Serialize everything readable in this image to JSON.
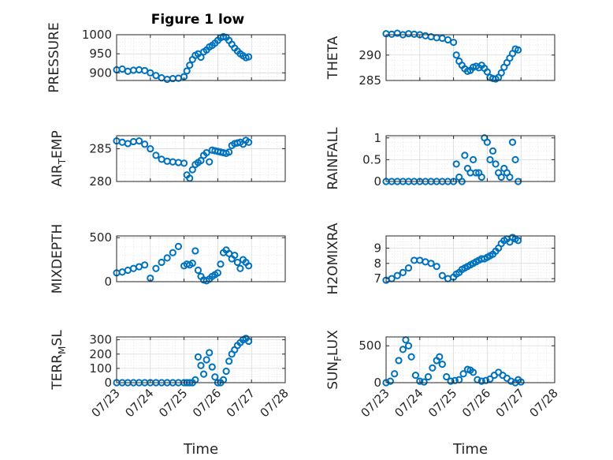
{
  "figure_title": "Figure 1 low",
  "chart_data": [
    {
      "type": "scatter",
      "title": "Figure 1 low",
      "ylabel": "PRESSURE",
      "ylabel_sub": "",
      "xlabel": "",
      "xlim": [
        "07/23",
        "07/28"
      ],
      "ylim": [
        880,
        1000
      ],
      "yticks": [
        900,
        950,
        1000
      ],
      "xticks": [],
      "grid": true,
      "marker": "circle",
      "color": "#0072BD",
      "x": [
        "07/23 00:00",
        "07/23 04:00",
        "07/23 08:00",
        "07/23 12:00",
        "07/23 16:00",
        "07/23 20:00",
        "07/24 00:00",
        "07/24 04:00",
        "07/24 08:00",
        "07/24 12:00",
        "07/24 16:00",
        "07/24 20:00",
        "07/25 00:00",
        "07/25 02:00",
        "07/25 04:00",
        "07/25 06:00",
        "07/25 08:00",
        "07/25 10:00",
        "07/25 12:00",
        "07/25 14:00",
        "07/25 16:00",
        "07/25 18:00",
        "07/25 20:00",
        "07/25 22:00",
        "07/26 00:00",
        "07/26 02:00",
        "07/26 04:00",
        "07/26 06:00",
        "07/26 08:00",
        "07/26 10:00",
        "07/26 12:00",
        "07/26 14:00",
        "07/26 16:00",
        "07/26 18:00",
        "07/26 20:00",
        "07/26 22:00"
      ],
      "y": [
        908,
        910,
        904,
        907,
        908,
        906,
        900,
        893,
        887,
        883,
        885,
        886,
        890,
        905,
        920,
        935,
        946,
        950,
        941,
        955,
        960,
        968,
        972,
        978,
        985,
        992,
        995,
        993,
        985,
        975,
        965,
        957,
        950,
        945,
        940,
        942
      ]
    },
    {
      "type": "scatter",
      "title": "",
      "ylabel": "THETA",
      "ylabel_sub": "",
      "xlabel": "",
      "xlim": [
        "07/23",
        "07/28"
      ],
      "ylim": [
        285,
        294
      ],
      "yticks": [
        285,
        290
      ],
      "xticks": [],
      "grid": true,
      "marker": "circle",
      "color": "#0072BD",
      "x": [
        "07/23 00:00",
        "07/23 04:00",
        "07/23 08:00",
        "07/23 12:00",
        "07/23 16:00",
        "07/23 20:00",
        "07/24 00:00",
        "07/24 04:00",
        "07/24 08:00",
        "07/24 12:00",
        "07/24 16:00",
        "07/24 20:00",
        "07/25 00:00",
        "07/25 02:00",
        "07/25 04:00",
        "07/25 06:00",
        "07/25 08:00",
        "07/25 10:00",
        "07/25 12:00",
        "07/25 14:00",
        "07/25 16:00",
        "07/25 18:00",
        "07/25 20:00",
        "07/25 22:00",
        "07/26 00:00",
        "07/26 02:00",
        "07/26 04:00",
        "07/26 06:00",
        "07/26 08:00",
        "07/26 10:00",
        "07/26 12:00",
        "07/26 14:00",
        "07/26 16:00",
        "07/26 18:00",
        "07/26 20:00",
        "07/26 22:00"
      ],
      "y": [
        294.2,
        294.1,
        294.3,
        294.0,
        294.2,
        294.1,
        294.0,
        293.8,
        293.6,
        293.4,
        293.3,
        293.0,
        292.5,
        290.0,
        288.8,
        288.0,
        287.3,
        286.8,
        287.0,
        287.6,
        287.8,
        287.5,
        288.0,
        287.4,
        286.7,
        285.6,
        285.4,
        285.3,
        285.6,
        286.5,
        287.6,
        288.5,
        289.4,
        290.3,
        291.2,
        291.0
      ]
    },
    {
      "type": "scatter",
      "title": "",
      "ylabel": "AIR",
      "ylabel_sub": "T",
      "ylabel_rest": "EMP",
      "xlabel": "",
      "xlim": [
        "07/23",
        "07/28"
      ],
      "ylim": [
        280,
        287
      ],
      "yticks": [
        280,
        285
      ],
      "xticks": [],
      "grid": true,
      "marker": "circle",
      "color": "#0072BD",
      "x": [
        "07/23 00:00",
        "07/23 04:00",
        "07/23 08:00",
        "07/23 12:00",
        "07/23 16:00",
        "07/23 20:00",
        "07/24 00:00",
        "07/24 04:00",
        "07/24 08:00",
        "07/24 12:00",
        "07/24 16:00",
        "07/24 20:00",
        "07/25 00:00",
        "07/25 02:00",
        "07/25 04:00",
        "07/25 06:00",
        "07/25 08:00",
        "07/25 10:00",
        "07/25 12:00",
        "07/25 14:00",
        "07/25 16:00",
        "07/25 18:00",
        "07/25 20:00",
        "07/25 22:00",
        "07/26 00:00",
        "07/26 02:00",
        "07/26 04:00",
        "07/26 06:00",
        "07/26 08:00",
        "07/26 10:00",
        "07/26 12:00",
        "07/26 14:00",
        "07/26 16:00",
        "07/26 18:00",
        "07/26 20:00",
        "07/26 22:00"
      ],
      "y": [
        286.2,
        286.0,
        285.8,
        286.1,
        286.2,
        285.7,
        285.0,
        284.0,
        283.4,
        283.1,
        283.0,
        282.9,
        282.8,
        281.0,
        280.5,
        281.8,
        282.6,
        282.9,
        283.2,
        284.0,
        284.4,
        283.0,
        284.8,
        284.7,
        284.6,
        284.5,
        284.4,
        284.3,
        284.5,
        285.5,
        285.8,
        285.9,
        286.0,
        285.7,
        286.3,
        286.0
      ]
    },
    {
      "type": "scatter",
      "title": "",
      "ylabel": "RAINFALL",
      "ylabel_sub": "",
      "xlabel": "",
      "xlim": [
        "07/23",
        "07/28"
      ],
      "ylim": [
        0,
        1.05
      ],
      "yticks": [
        0,
        0.5,
        1
      ],
      "xticks": [],
      "grid": true,
      "marker": "circle",
      "color": "#0072BD",
      "x": [
        "07/23 00:00",
        "07/23 04:00",
        "07/23 08:00",
        "07/23 12:00",
        "07/23 16:00",
        "07/23 20:00",
        "07/24 00:00",
        "07/24 04:00",
        "07/24 08:00",
        "07/24 12:00",
        "07/24 16:00",
        "07/24 20:00",
        "07/25 00:00",
        "07/25 02:00",
        "07/25 04:00",
        "07/25 06:00",
        "07/25 08:00",
        "07/25 10:00",
        "07/25 12:00",
        "07/25 14:00",
        "07/25 16:00",
        "07/25 18:00",
        "07/25 20:00",
        "07/25 22:00",
        "07/26 00:00",
        "07/26 02:00",
        "07/26 04:00",
        "07/26 06:00",
        "07/26 08:00",
        "07/26 10:00",
        "07/26 12:00",
        "07/26 14:00",
        "07/26 16:00",
        "07/26 18:00",
        "07/26 20:00",
        "07/26 22:00"
      ],
      "y": [
        0,
        0,
        0,
        0,
        0,
        0,
        0,
        0,
        0,
        0,
        0,
        0,
        0,
        0.4,
        0.1,
        0,
        0.6,
        0.3,
        0.2,
        0.5,
        0.2,
        0.2,
        0.1,
        1.0,
        0.9,
        0.5,
        0.7,
        0.4,
        0.2,
        0.1,
        0.3,
        0.2,
        0.1,
        0.9,
        0.5,
        0
      ]
    },
    {
      "type": "scatter",
      "title": "",
      "ylabel": "MIXDEPTH",
      "ylabel_sub": "",
      "xlabel": "",
      "xlim": [
        "07/23",
        "07/28"
      ],
      "ylim": [
        0,
        520
      ],
      "yticks": [
        0,
        500
      ],
      "xticks": [],
      "grid": true,
      "marker": "circle",
      "color": "#0072BD",
      "x": [
        "07/23 00:00",
        "07/23 04:00",
        "07/23 08:00",
        "07/23 12:00",
        "07/23 16:00",
        "07/23 20:00",
        "07/24 00:00",
        "07/24 04:00",
        "07/24 08:00",
        "07/24 12:00",
        "07/24 16:00",
        "07/24 20:00",
        "07/25 00:00",
        "07/25 02:00",
        "07/25 04:00",
        "07/25 06:00",
        "07/25 08:00",
        "07/25 10:00",
        "07/25 12:00",
        "07/25 14:00",
        "07/25 16:00",
        "07/25 18:00",
        "07/25 20:00",
        "07/25 22:00",
        "07/26 00:00",
        "07/26 02:00",
        "07/26 04:00",
        "07/26 06:00",
        "07/26 08:00",
        "07/26 10:00",
        "07/26 12:00",
        "07/26 14:00",
        "07/26 16:00",
        "07/26 18:00",
        "07/26 20:00",
        "07/26 22:00"
      ],
      "y": [
        100,
        110,
        130,
        150,
        170,
        190,
        40,
        150,
        220,
        270,
        330,
        400,
        180,
        200,
        190,
        210,
        350,
        130,
        60,
        20,
        10,
        30,
        60,
        80,
        100,
        200,
        330,
        360,
        320,
        260,
        300,
        220,
        150,
        250,
        220,
        180
      ]
    },
    {
      "type": "scatter",
      "title": "",
      "ylabel": "H2OMIXRA",
      "ylabel_sub": "",
      "xlabel": "",
      "xlim": [
        "07/23",
        "07/28"
      ],
      "ylim": [
        6.8,
        9.8
      ],
      "yticks": [
        7,
        8,
        9
      ],
      "xticks": [],
      "grid": true,
      "marker": "circle",
      "color": "#0072BD",
      "x": [
        "07/23 00:00",
        "07/23 04:00",
        "07/23 08:00",
        "07/23 12:00",
        "07/23 16:00",
        "07/23 20:00",
        "07/24 00:00",
        "07/24 04:00",
        "07/24 08:00",
        "07/24 12:00",
        "07/24 16:00",
        "07/24 20:00",
        "07/25 00:00",
        "07/25 02:00",
        "07/25 04:00",
        "07/25 06:00",
        "07/25 08:00",
        "07/25 10:00",
        "07/25 12:00",
        "07/25 14:00",
        "07/25 16:00",
        "07/25 18:00",
        "07/25 20:00",
        "07/25 22:00",
        "07/26 00:00",
        "07/26 02:00",
        "07/26 04:00",
        "07/26 06:00",
        "07/26 08:00",
        "07/26 10:00",
        "07/26 12:00",
        "07/26 14:00",
        "07/26 16:00",
        "07/26 18:00",
        "07/26 20:00",
        "07/26 22:00"
      ],
      "y": [
        6.9,
        7.0,
        7.2,
        7.4,
        7.7,
        8.2,
        8.2,
        8.1,
        8.0,
        7.8,
        7.2,
        7.0,
        7.1,
        7.3,
        7.4,
        7.6,
        7.7,
        7.8,
        7.9,
        8.0,
        8.1,
        8.2,
        8.3,
        8.3,
        8.4,
        8.5,
        8.6,
        8.8,
        9.0,
        9.3,
        9.5,
        9.6,
        9.4,
        9.7,
        9.6,
        9.5
      ]
    },
    {
      "type": "scatter",
      "title": "",
      "ylabel": "TERR",
      "ylabel_sub": "M",
      "ylabel_rest": "SL",
      "xlabel": "Time",
      "xlim": [
        "07/23",
        "07/28"
      ],
      "ylim": [
        0,
        320
      ],
      "yticks": [
        0,
        100,
        200,
        300
      ],
      "xticks": [
        "07/23",
        "07/24",
        "07/25",
        "07/26",
        "07/27",
        "07/28"
      ],
      "grid": true,
      "marker": "circle",
      "color": "#0072BD",
      "x": [
        "07/23 00:00",
        "07/23 04:00",
        "07/23 08:00",
        "07/23 12:00",
        "07/23 16:00",
        "07/23 20:00",
        "07/24 00:00",
        "07/24 04:00",
        "07/24 08:00",
        "07/24 12:00",
        "07/24 16:00",
        "07/24 20:00",
        "07/25 00:00",
        "07/25 02:00",
        "07/25 04:00",
        "07/25 06:00",
        "07/25 08:00",
        "07/25 10:00",
        "07/25 12:00",
        "07/25 14:00",
        "07/25 16:00",
        "07/25 18:00",
        "07/25 20:00",
        "07/25 22:00",
        "07/26 00:00",
        "07/26 02:00",
        "07/26 04:00",
        "07/26 06:00",
        "07/26 08:00",
        "07/26 10:00",
        "07/26 12:00",
        "07/26 14:00",
        "07/26 16:00",
        "07/26 18:00",
        "07/26 20:00",
        "07/26 22:00"
      ],
      "y": [
        0,
        0,
        0,
        0,
        0,
        0,
        0,
        0,
        0,
        0,
        0,
        0,
        0,
        0,
        0,
        0,
        20,
        180,
        120,
        60,
        160,
        210,
        110,
        40,
        0,
        0,
        20,
        80,
        150,
        200,
        230,
        260,
        280,
        300,
        310,
        290
      ]
    },
    {
      "type": "scatter",
      "title": "",
      "ylabel": "SUN",
      "ylabel_sub": "F",
      "ylabel_rest": "LUX",
      "xlabel": "Time",
      "xlim": [
        "07/23",
        "07/28"
      ],
      "ylim": [
        0,
        620
      ],
      "yticks": [
        0,
        500
      ],
      "xticks": [
        "07/23",
        "07/24",
        "07/25",
        "07/26",
        "07/27",
        "07/28"
      ],
      "grid": true,
      "marker": "circle",
      "color": "#0072BD",
      "x": [
        "07/23 00:00",
        "07/23 03:00",
        "07/23 06:00",
        "07/23 09:00",
        "07/23 12:00",
        "07/23 14:00",
        "07/23 16:00",
        "07/23 18:00",
        "07/23 21:00",
        "07/24 00:00",
        "07/24 03:00",
        "07/24 06:00",
        "07/24 09:00",
        "07/24 12:00",
        "07/24 14:00",
        "07/24 16:00",
        "07/24 19:00",
        "07/24 22:00",
        "07/25 01:00",
        "07/25 04:00",
        "07/25 07:00",
        "07/25 10:00",
        "07/25 12:00",
        "07/25 14:00",
        "07/25 17:00",
        "07/25 20:00",
        "07/25 23:00",
        "07/26 02:00",
        "07/26 05:00",
        "07/26 08:00",
        "07/26 11:00",
        "07/26 14:00",
        "07/26 17:00",
        "07/26 20:00",
        "07/26 22:00",
        "07/27 00:00"
      ],
      "y": [
        0,
        20,
        120,
        300,
        450,
        580,
        500,
        350,
        100,
        20,
        10,
        80,
        200,
        300,
        350,
        250,
        80,
        20,
        30,
        40,
        120,
        180,
        170,
        140,
        40,
        20,
        30,
        50,
        100,
        140,
        100,
        60,
        20,
        0,
        40,
        10
      ]
    }
  ]
}
